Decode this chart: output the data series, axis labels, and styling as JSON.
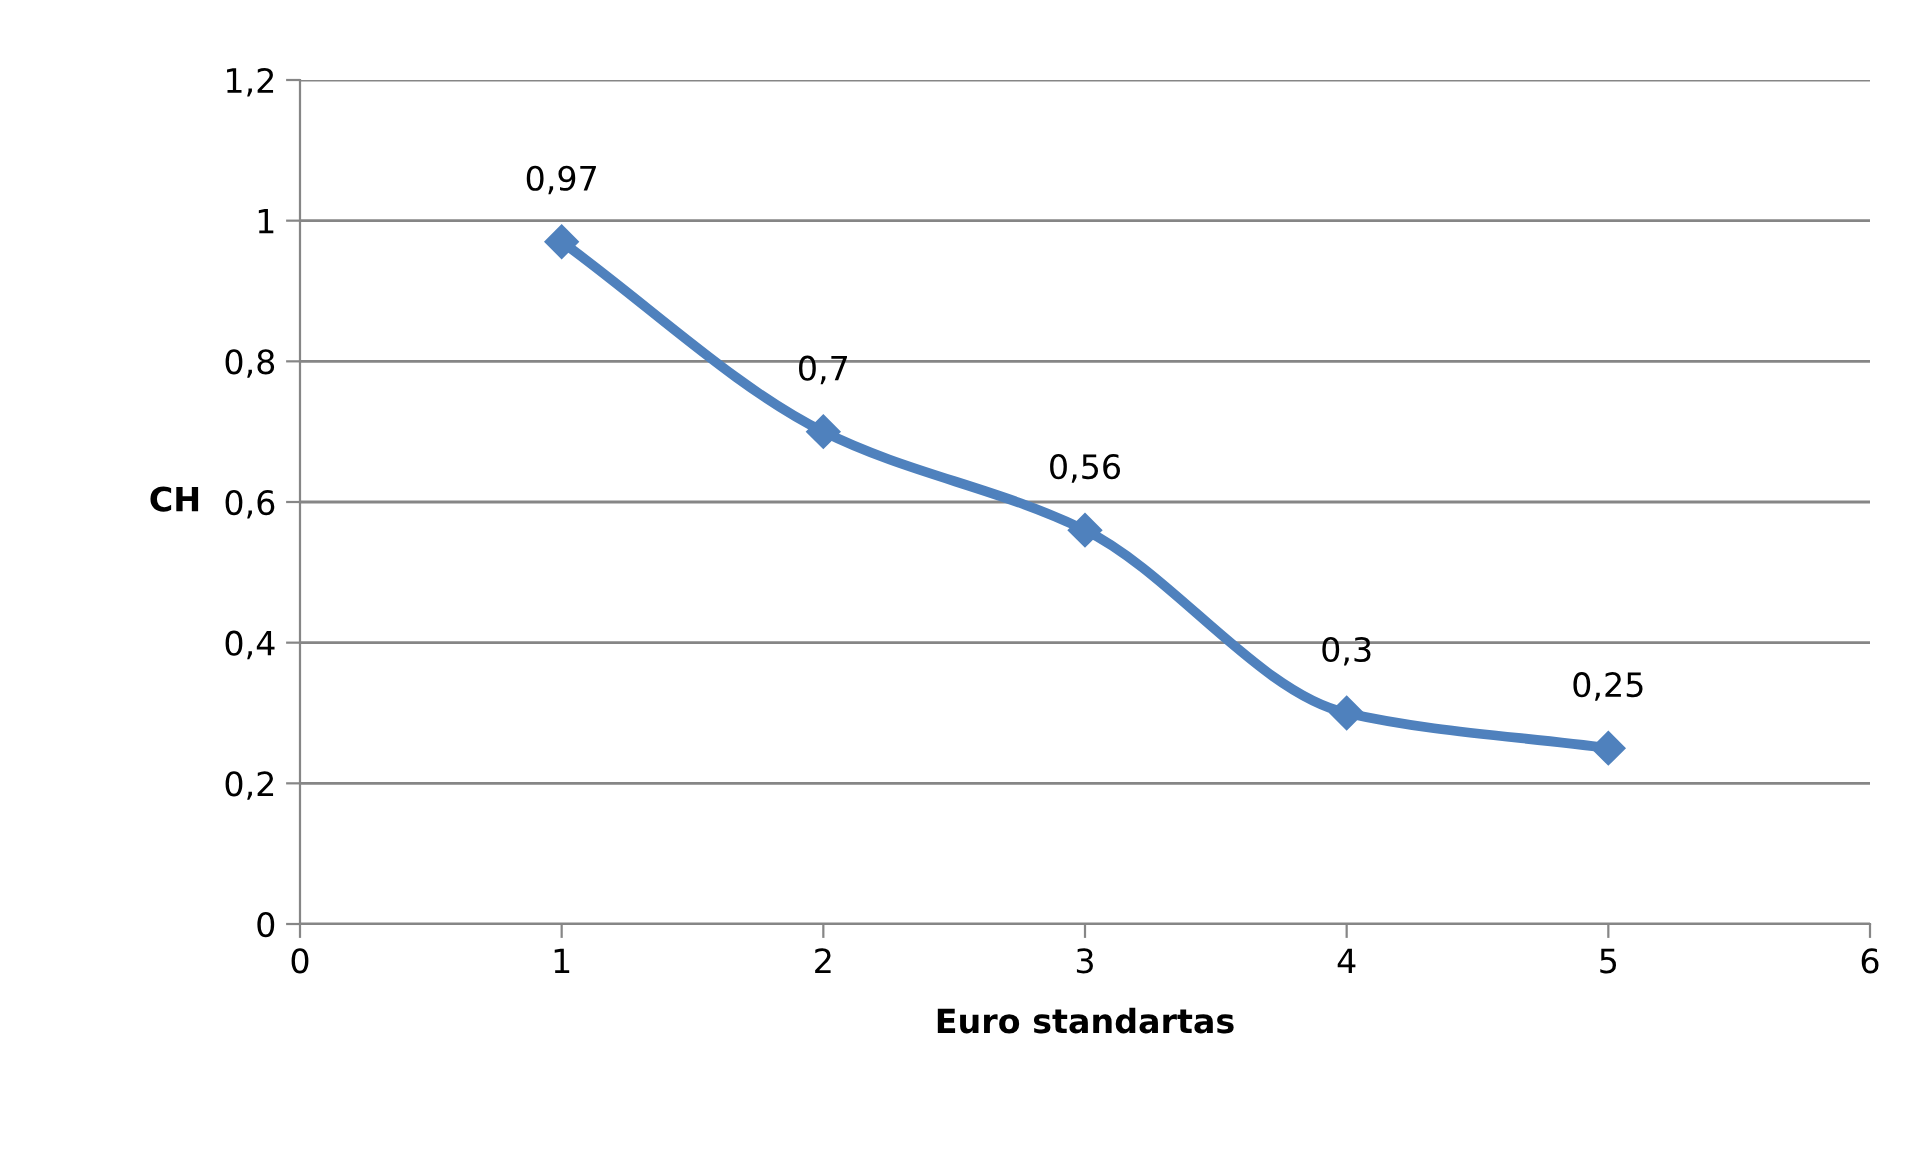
{
  "chart_data": {
    "type": "line",
    "xlabel": "Euro standartas",
    "ylabel": "CH",
    "x": [
      1,
      2,
      3,
      4,
      5
    ],
    "series": [
      {
        "color": "#4f81bd",
        "values": [
          0.97,
          0.7,
          0.56,
          0.3,
          0.25
        ],
        "value_labels": [
          "0,97",
          "0,7",
          "0,56",
          "0,3",
          "0,25"
        ]
      }
    ],
    "xlim": [
      0,
      6
    ],
    "xticks": [
      0,
      1,
      2,
      3,
      4,
      5,
      6
    ],
    "ylim": [
      0,
      1.2
    ],
    "yticks": [
      0,
      {
        "value": 0.2,
        "label": "0,2"
      },
      {
        "value": 0.4,
        "label": "0,4"
      },
      {
        "value": 0.6,
        "label": "0,6"
      },
      {
        "value": 0.8,
        "label": "0,8"
      },
      1,
      {
        "value": 1.2,
        "label": "1,2"
      }
    ],
    "grid": "y",
    "marker": "diamond",
    "line_style": "solid"
  }
}
